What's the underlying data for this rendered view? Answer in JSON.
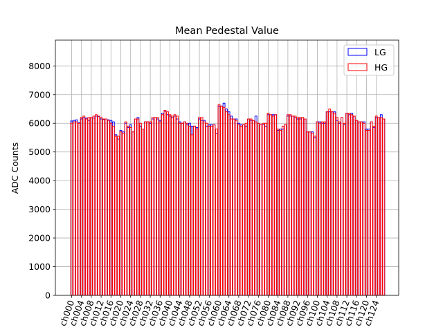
{
  "chart_data": {
    "type": "bar",
    "title": "Mean Pedestal Value",
    "xlabel": "",
    "ylabel": "ADC Counts",
    "ylim": [
      0,
      8900
    ],
    "yticks": [
      0,
      1000,
      2000,
      3000,
      4000,
      5000,
      6000,
      7000,
      8000
    ],
    "grid": true,
    "legend_position": "top-right",
    "x_tick_labels": [
      "ch000",
      "ch004",
      "ch008",
      "ch012",
      "ch016",
      "ch020",
      "ch024",
      "ch028",
      "ch032",
      "ch036",
      "ch040",
      "ch044",
      "ch048",
      "ch052",
      "ch056",
      "ch060",
      "ch064",
      "ch068",
      "ch072",
      "ch076",
      "ch080",
      "ch084",
      "ch088",
      "ch092",
      "ch096",
      "ch100",
      "ch104",
      "ch108",
      "ch112",
      "ch116",
      "ch120",
      "ch124"
    ],
    "categories": [
      "ch000",
      "ch001",
      "ch002",
      "ch003",
      "ch004",
      "ch005",
      "ch006",
      "ch007",
      "ch008",
      "ch009",
      "ch010",
      "ch011",
      "ch012",
      "ch013",
      "ch014",
      "ch015",
      "ch016",
      "ch017",
      "ch018",
      "ch019",
      "ch020",
      "ch021",
      "ch022",
      "ch023",
      "ch024",
      "ch025",
      "ch026",
      "ch027",
      "ch028",
      "ch029",
      "ch030",
      "ch031",
      "ch032",
      "ch033",
      "ch034",
      "ch035",
      "ch036",
      "ch037",
      "ch038",
      "ch039",
      "ch040",
      "ch041",
      "ch042",
      "ch043",
      "ch044",
      "ch045",
      "ch046",
      "ch047",
      "ch048",
      "ch049",
      "ch050",
      "ch051",
      "ch052",
      "ch053",
      "ch054",
      "ch055",
      "ch056",
      "ch057",
      "ch058",
      "ch059",
      "ch060",
      "ch061",
      "ch062",
      "ch063",
      "ch064",
      "ch065",
      "ch066",
      "ch067",
      "ch068",
      "ch069",
      "ch070",
      "ch071",
      "ch072",
      "ch073",
      "ch074",
      "ch075",
      "ch076",
      "ch077",
      "ch078",
      "ch079",
      "ch080",
      "ch081",
      "ch082",
      "ch083",
      "ch084",
      "ch085",
      "ch086",
      "ch087",
      "ch088",
      "ch089",
      "ch090",
      "ch091",
      "ch092",
      "ch093",
      "ch094",
      "ch095",
      "ch096",
      "ch097",
      "ch098",
      "ch099",
      "ch100",
      "ch101",
      "ch102",
      "ch103",
      "ch104",
      "ch105",
      "ch106",
      "ch107",
      "ch108",
      "ch109",
      "ch110",
      "ch111",
      "ch112",
      "ch113",
      "ch114",
      "ch115",
      "ch116",
      "ch117",
      "ch118",
      "ch119",
      "ch120",
      "ch121",
      "ch122",
      "ch123",
      "ch124",
      "ch125",
      "ch126",
      "ch127"
    ],
    "series": [
      {
        "name": "LG",
        "color": "#0000ff",
        "style": "outline",
        "values": [
          6080,
          6100,
          6120,
          6020,
          6150,
          6200,
          6180,
          6100,
          6200,
          6180,
          6250,
          6230,
          6150,
          6130,
          6150,
          6120,
          6100,
          6050,
          5600,
          5450,
          5750,
          5700,
          6000,
          5850,
          5950,
          5700,
          6150,
          6200,
          5900,
          5800,
          6050,
          6050,
          6000,
          6150,
          6200,
          6150,
          6100,
          6350,
          6420,
          6300,
          6250,
          6200,
          6250,
          6150,
          6050,
          6000,
          6050,
          5950,
          6000,
          5900,
          5900,
          5850,
          6150,
          6100,
          6100,
          5900,
          5950,
          5950,
          5950,
          5650,
          6600,
          6600,
          6700,
          6500,
          6400,
          6250,
          6150,
          6150,
          6000,
          5950,
          5950,
          5900,
          6150,
          6100,
          6100,
          6250,
          6000,
          5950,
          5950,
          5900,
          6300,
          6300,
          6300,
          6300,
          5750,
          5800,
          5800,
          5950,
          6250,
          6250,
          6250,
          6200,
          6150,
          6150,
          6200,
          6150,
          5700,
          5700,
          5700,
          5500,
          6050,
          6050,
          6000,
          6000,
          6400,
          6400,
          6400,
          6400,
          6100,
          6000,
          6200,
          5950,
          6350,
          6300,
          6350,
          6250,
          6100,
          6050,
          6050,
          6050,
          5800,
          5800,
          6050,
          5850,
          6200,
          6200,
          6300,
          6150
        ]
      },
      {
        "name": "HG",
        "color": "#ff0000",
        "style": "outline",
        "values": [
          6000,
          6050,
          6050,
          6000,
          6200,
          6250,
          6150,
          6200,
          6200,
          6250,
          6300,
          6250,
          6200,
          6150,
          6150,
          6100,
          6000,
          5900,
          5550,
          5550,
          5700,
          5650,
          6050,
          5900,
          5850,
          5700,
          6150,
          6150,
          6000,
          5800,
          6050,
          6050,
          6050,
          6200,
          6200,
          6200,
          6050,
          6300,
          6450,
          6400,
          6300,
          6250,
          6300,
          6250,
          6000,
          6000,
          6050,
          6000,
          5900,
          5600,
          5900,
          5800,
          6200,
          6200,
          6050,
          6000,
          5900,
          5900,
          5950,
          5800,
          6650,
          6600,
          6550,
          6400,
          6300,
          6150,
          6150,
          6100,
          5950,
          5900,
          5950,
          6000,
          6150,
          6150,
          6100,
          6050,
          6000,
          5950,
          6000,
          6000,
          6350,
          6300,
          6250,
          6300,
          5800,
          5750,
          5900,
          5950,
          6300,
          6300,
          6250,
          6250,
          6200,
          6200,
          6200,
          6150,
          5700,
          5700,
          5650,
          5550,
          6050,
          6000,
          6050,
          6050,
          6400,
          6500,
          6400,
          6350,
          6200,
          6050,
          6200,
          6000,
          6350,
          6350,
          6300,
          6250,
          6100,
          6050,
          6050,
          6000,
          5750,
          5750,
          6050,
          5900,
          6250,
          6200,
          6200,
          6150
        ]
      }
    ]
  }
}
